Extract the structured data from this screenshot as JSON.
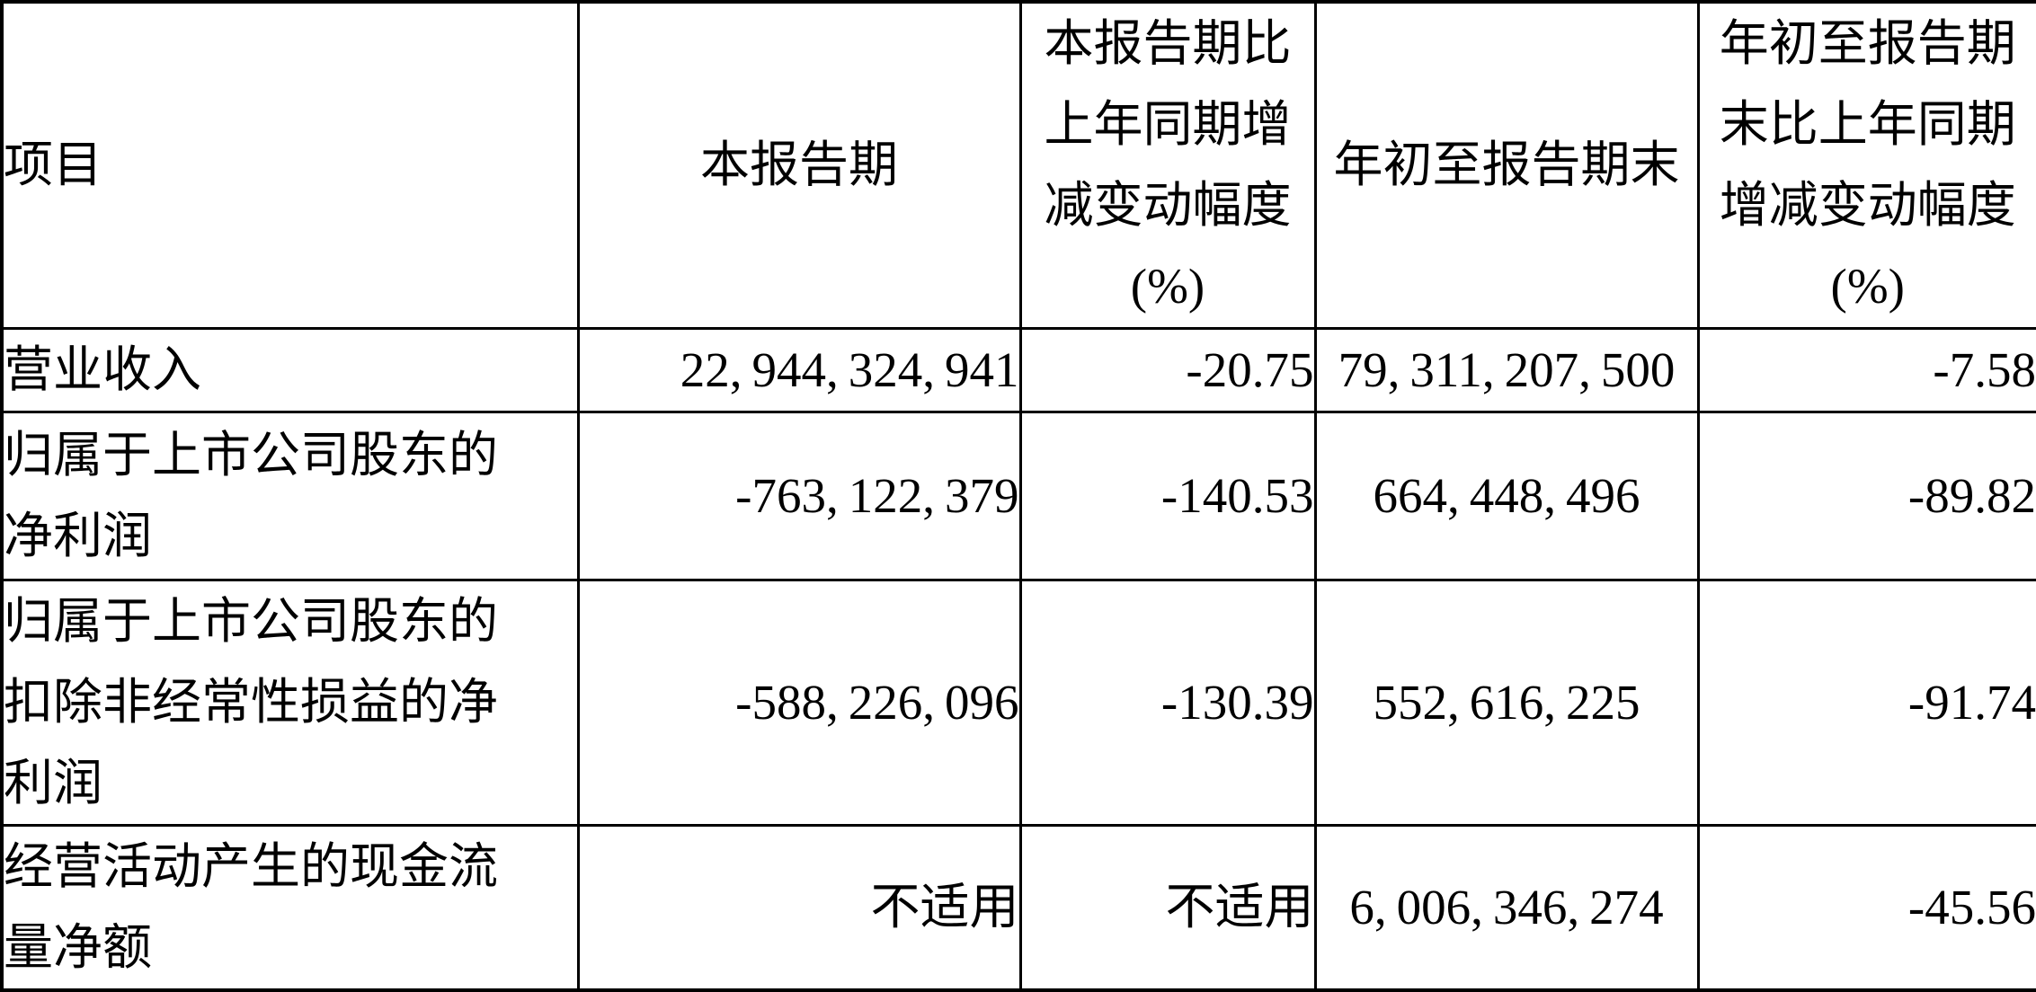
{
  "colors": {
    "text": "#000000",
    "background": "#ffffff",
    "border": "#000000"
  },
  "table": {
    "headers": {
      "item": "项目",
      "current_period": "本报告期",
      "current_period_change": "本报告期比\n上年同期增\n减变动幅度\n(%)",
      "ytd": "年初至报告期末",
      "ytd_change": "年初至报告期\n末比上年同期\n增减变动幅度\n(%)"
    },
    "rows": [
      {
        "item": "营业收入",
        "current_period": "22,944,324,941",
        "current_period_change": "-20.75",
        "ytd": "79,311,207,500",
        "ytd_change": "-7.58"
      },
      {
        "item": "归属于上市公司股东的\n净利润",
        "current_period": "-763,122,379",
        "current_period_change": "-140.53",
        "ytd": "664,448,496",
        "ytd_change": "-89.82"
      },
      {
        "item": "归属于上市公司股东的\n扣除非经常性损益的净\n利润",
        "current_period": "-588,226,096",
        "current_period_change": "-130.39",
        "ytd": "552,616,225",
        "ytd_change": "-91.74"
      },
      {
        "item": "经营活动产生的现金流\n量净额",
        "current_period": "不适用",
        "current_period_change": "不适用",
        "ytd": "6,006,346,274",
        "ytd_change": "-45.56"
      }
    ]
  }
}
